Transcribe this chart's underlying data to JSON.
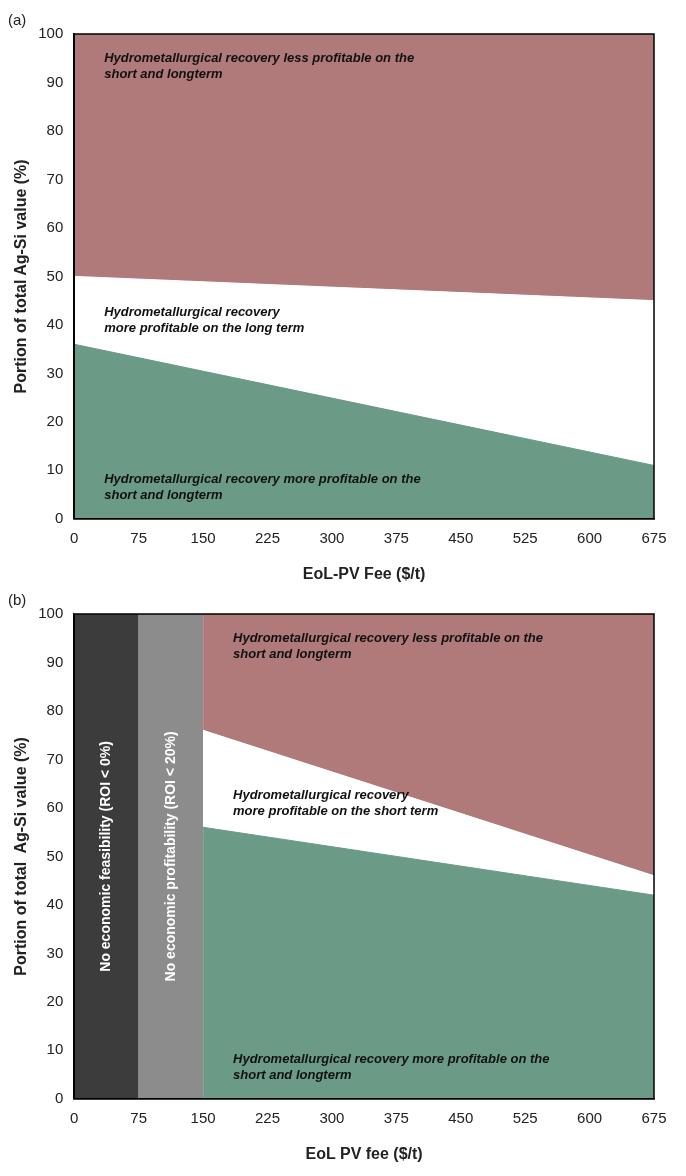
{
  "chart_data": [
    {
      "type": "area",
      "title": "(a)",
      "xlabel": "EoL-PV Fee ($/t)",
      "ylabel": "Portion of total Ag-Si value (%)",
      "x": [
        0,
        675
      ],
      "stacked": true,
      "series": [
        {
          "color": "#6b9a86",
          "values": [
            36,
            11
          ]
        },
        {
          "color": "#ffffff",
          "values": [
            14,
            34
          ]
        },
        {
          "color": "#b07a7a",
          "values": [
            50,
            55
          ]
        }
      ],
      "xlim": [
        0,
        675
      ],
      "xticks": [
        0,
        75,
        150,
        225,
        300,
        375,
        450,
        525,
        600,
        675
      ],
      "ylim": [
        0,
        100
      ],
      "yticks": [
        0,
        10,
        20,
        30,
        40,
        50,
        60,
        70,
        80,
        90,
        100
      ],
      "grid": false,
      "legend": false,
      "annotations": [
        "Hydrometallurgical recovery less profitable on the short and longterm",
        "Hydrometallurgical recovery more profitable on the long term",
        "Hydrometallurgical recovery more profitable on the short and longterm"
      ]
    },
    {
      "type": "area",
      "title": "(b)",
      "xlabel": "EoL PV fee ($/t)",
      "ylabel": "Portion of total  Ag-Si value (%)",
      "x": [
        150,
        675
      ],
      "stacked": true,
      "series": [
        {
          "color": "#6b9a86",
          "values": [
            56,
            42
          ]
        },
        {
          "color": "#ffffff",
          "values": [
            20,
            4
          ]
        },
        {
          "color": "#b07a7a",
          "values": [
            24,
            54
          ]
        }
      ],
      "bands": [
        {
          "axis": "x",
          "from": 0,
          "to": 75,
          "label": "No economic feasibility (ROI < 0%)",
          "color": "#3c3c3c"
        },
        {
          "axis": "x",
          "from": 75,
          "to": 150,
          "label": "No economic profitability (ROI < 20%)",
          "color": "#8c8c8c"
        }
      ],
      "xlim": [
        0,
        675
      ],
      "xticks": [
        0,
        75,
        150,
        225,
        300,
        375,
        450,
        525,
        600,
        675
      ],
      "ylim": [
        0,
        100
      ],
      "yticks": [
        0,
        10,
        20,
        30,
        40,
        50,
        60,
        70,
        80,
        90,
        100
      ],
      "grid": false,
      "legend": false,
      "annotations": [
        "Hydrometallurgical recovery less profitable on the short and longterm",
        "Hydrometallurgical recovery more profitable on the short term",
        "Hydrometallurgical recovery more profitable on the short and longterm"
      ]
    }
  ]
}
